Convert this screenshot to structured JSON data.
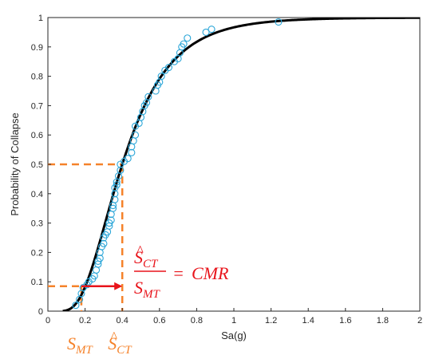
{
  "chart_data": {
    "type": "scatter",
    "title": "",
    "xlabel": "Sa(g)",
    "ylabel": "Probability of Collapse",
    "xlim": [
      0,
      2
    ],
    "ylim": [
      0,
      1
    ],
    "xticks": [
      0,
      0.2,
      0.4,
      0.6,
      0.8,
      1,
      1.2,
      1.4,
      1.6,
      1.8,
      2
    ],
    "xtick_labels": [
      "0",
      "0.2",
      "0.4",
      "0.6",
      "0.8",
      "1",
      "1.2",
      "1.4",
      "1.6",
      "1.8",
      "2"
    ],
    "yticks": [
      0,
      0.1,
      0.2,
      0.3,
      0.4,
      0.5,
      0.6,
      0.7,
      0.8,
      0.9,
      1
    ],
    "ytick_labels": [
      "0",
      "0.1",
      "0.2",
      "0.3",
      "0.4",
      "0.5",
      "0.6",
      "0.7",
      "0.8",
      "0.9",
      "1"
    ],
    "grid": false,
    "series": [
      {
        "kind": "scatter",
        "marker": "circle-open",
        "color": "#2ba6d8",
        "points": [
          [
            0.15,
            0.02
          ],
          [
            0.17,
            0.04
          ],
          [
            0.18,
            0.06
          ],
          [
            0.19,
            0.08
          ],
          [
            0.21,
            0.09
          ],
          [
            0.22,
            0.1
          ],
          [
            0.24,
            0.11
          ],
          [
            0.25,
            0.12
          ],
          [
            0.26,
            0.14
          ],
          [
            0.27,
            0.16
          ],
          [
            0.27,
            0.17
          ],
          [
            0.28,
            0.18
          ],
          [
            0.28,
            0.2
          ],
          [
            0.29,
            0.22
          ],
          [
            0.3,
            0.23
          ],
          [
            0.3,
            0.25
          ],
          [
            0.31,
            0.26
          ],
          [
            0.32,
            0.27
          ],
          [
            0.33,
            0.29
          ],
          [
            0.33,
            0.3
          ],
          [
            0.34,
            0.31
          ],
          [
            0.34,
            0.33
          ],
          [
            0.35,
            0.35
          ],
          [
            0.35,
            0.36
          ],
          [
            0.36,
            0.38
          ],
          [
            0.36,
            0.4
          ],
          [
            0.36,
            0.42
          ],
          [
            0.37,
            0.43
          ],
          [
            0.37,
            0.44
          ],
          [
            0.38,
            0.46
          ],
          [
            0.39,
            0.48
          ],
          [
            0.39,
            0.5
          ],
          [
            0.41,
            0.51
          ],
          [
            0.43,
            0.52
          ],
          [
            0.45,
            0.54
          ],
          [
            0.45,
            0.56
          ],
          [
            0.46,
            0.58
          ],
          [
            0.47,
            0.6
          ],
          [
            0.47,
            0.63
          ],
          [
            0.49,
            0.64
          ],
          [
            0.5,
            0.66
          ],
          [
            0.51,
            0.68
          ],
          [
            0.52,
            0.7
          ],
          [
            0.53,
            0.71
          ],
          [
            0.54,
            0.73
          ],
          [
            0.58,
            0.75
          ],
          [
            0.59,
            0.77
          ],
          [
            0.6,
            0.78
          ],
          [
            0.61,
            0.8
          ],
          [
            0.63,
            0.82
          ],
          [
            0.65,
            0.83
          ],
          [
            0.68,
            0.85
          ],
          [
            0.7,
            0.86
          ],
          [
            0.71,
            0.88
          ],
          [
            0.72,
            0.9
          ],
          [
            0.73,
            0.91
          ],
          [
            0.75,
            0.93
          ],
          [
            0.85,
            0.95
          ],
          [
            0.88,
            0.96
          ],
          [
            1.24,
            0.985
          ]
        ]
      },
      {
        "kind": "line",
        "color": "#000000",
        "distribution": "lognormal-cdf",
        "median": 0.4,
        "dispersion": 0.5,
        "x_range": [
          0.08,
          2
        ]
      }
    ],
    "annotations": [
      {
        "type": "dashed-guide",
        "color": "#f5822a",
        "x": 0.4,
        "y": 0.5
      },
      {
        "type": "dashed-guide",
        "color": "#f5822a",
        "x": 0.18,
        "y": 0.085
      },
      {
        "type": "arrow",
        "color": "#e8141b",
        "from": [
          0.18,
          0.085
        ],
        "to": [
          0.4,
          0.085
        ]
      }
    ],
    "x_markers": [
      {
        "x": 0.18,
        "symbol": "S",
        "subscript": "MT",
        "hat": false,
        "color": "#f5822a"
      },
      {
        "x": 0.4,
        "symbol": "S",
        "subscript": "CT",
        "hat": true,
        "color": "#f5822a"
      }
    ],
    "formula": {
      "color": "#e8141b",
      "numerator": {
        "symbol": "S",
        "subscript": "CT",
        "hat": true
      },
      "denominator": {
        "symbol": "S",
        "subscript": "MT",
        "hat": false
      },
      "equals": "=",
      "result": "CMR"
    }
  }
}
